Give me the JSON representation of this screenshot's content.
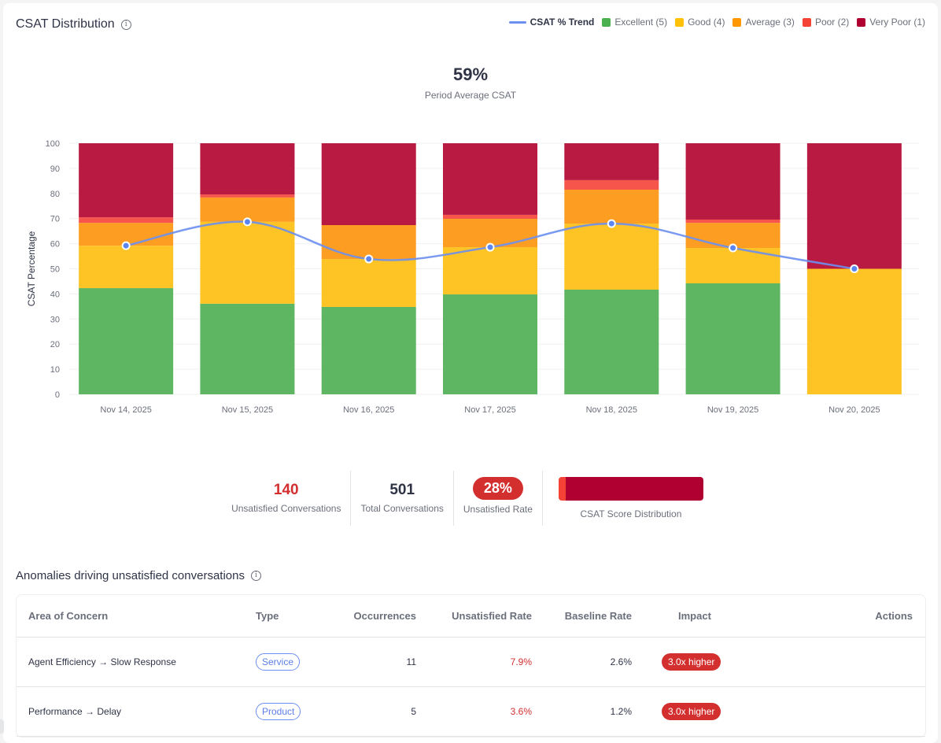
{
  "header": {
    "title": "CSAT Distribution",
    "info_icon": "info-icon"
  },
  "legend": {
    "trend_label": "CSAT % Trend",
    "items": [
      {
        "label": "Excellent (5)",
        "color": "#4caf50"
      },
      {
        "label": "Good (4)",
        "color": "#ffc107"
      },
      {
        "label": "Average (3)",
        "color": "#ff9800"
      },
      {
        "label": "Poor (2)",
        "color": "#f44336"
      },
      {
        "label": "Very Poor (1)",
        "color": "#b00032"
      }
    ]
  },
  "summary": {
    "average_value": "59%",
    "average_label": "Period Average CSAT"
  },
  "chart_data": {
    "type": "bar",
    "stacked": true,
    "title": "CSAT Distribution",
    "xlabel": "",
    "ylabel": "CSAT Percentage",
    "ylim": [
      0,
      100
    ],
    "yticks": [
      0,
      10,
      20,
      30,
      40,
      50,
      60,
      70,
      80,
      90,
      100
    ],
    "grid": true,
    "legend_position": "top-right",
    "categories": [
      "Nov 14, 2025",
      "Nov 15, 2025",
      "Nov 16, 2025",
      "Nov 17, 2025",
      "Nov 18, 2025",
      "Nov 19, 2025",
      "Nov 20, 2025"
    ],
    "series": [
      {
        "name": "Excellent (5)",
        "color": "#5eb562",
        "values": [
          42.3,
          36.1,
          34.8,
          39.8,
          41.7,
          44.2,
          0
        ]
      },
      {
        "name": "Good (4)",
        "color": "#fec325",
        "values": [
          16.9,
          32.6,
          19.1,
          18.8,
          26.3,
          14.1,
          50
        ]
      },
      {
        "name": "Average (3)",
        "color": "#fd9e22",
        "values": [
          9.1,
          9.7,
          13.5,
          11.3,
          13.5,
          10.0,
          0
        ]
      },
      {
        "name": "Poor (2)",
        "color": "#f6554c",
        "values": [
          2.2,
          1.2,
          0,
          1.6,
          3.8,
          1.3,
          0
        ]
      },
      {
        "name": "Very Poor (1)",
        "color": "#b91a41",
        "values": [
          29.5,
          20.4,
          32.6,
          28.5,
          14.7,
          30.4,
          50
        ]
      }
    ],
    "trend": {
      "name": "CSAT % Trend",
      "type": "line",
      "color": "#6c8ff0",
      "values": [
        59.2,
        68.7,
        53.9,
        58.6,
        68.0,
        58.3,
        50.0
      ]
    }
  },
  "stats": {
    "unsatisfied_value": "140",
    "unsatisfied_label": "Unsatisfied Conversations",
    "total_value": "501",
    "total_label": "Total Conversations",
    "rate_value": "28%",
    "rate_label": "Unsatisfied Rate",
    "distribution_label": "CSAT Score Distribution",
    "distribution": [
      {
        "name": "Poor (2)",
        "share": 0.05,
        "color": "#f44336"
      },
      {
        "name": "Very Poor (1)",
        "share": 0.95,
        "color": "#b00032"
      }
    ]
  },
  "anomalies": {
    "title": "Anomalies driving unsatisfied conversations",
    "columns": [
      "Area of Concern",
      "Type",
      "Occurrences",
      "Unsatisfied Rate",
      "Baseline Rate",
      "Impact",
      "Actions"
    ],
    "rows": [
      {
        "area": "Agent Efficiency → Slow Response",
        "type": "Service",
        "occurrences": "11",
        "unsatisfied_rate": "7.9%",
        "baseline_rate": "2.6%",
        "impact": "3.0x higher"
      },
      {
        "area": "Performance → Delay",
        "type": "Product",
        "occurrences": "5",
        "unsatisfied_rate": "3.6%",
        "baseline_rate": "1.2%",
        "impact": "3.0x higher"
      }
    ]
  }
}
